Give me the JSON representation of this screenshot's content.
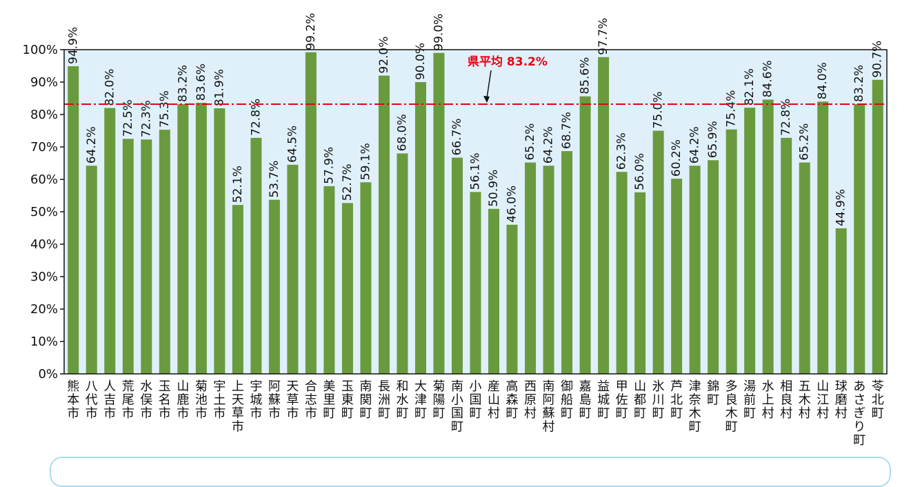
{
  "chart_data": {
    "type": "bar",
    "ylim": [
      0,
      100
    ],
    "yticks": [
      "0%",
      "10%",
      "20%",
      "30%",
      "40%",
      "50%",
      "60%",
      "70%",
      "80%",
      "90%",
      "100%"
    ],
    "grid": false,
    "legend": "none",
    "categories": [
      "熊本市",
      "八代市",
      "人吉市",
      "荒尾市",
      "水俣市",
      "玉名市",
      "山鹿市",
      "菊池市",
      "宇土市",
      "上天草市",
      "宇城市",
      "阿蘇市",
      "天草市",
      "合志市",
      "美里町",
      "玉東町",
      "南関町",
      "長洲町",
      "和水町",
      "大津町",
      "菊陽町",
      "南小国町",
      "小国町",
      "産山村",
      "高森町",
      "西原村",
      "南阿蘇村",
      "御船町",
      "嘉島町",
      "益城町",
      "甲佐町",
      "山都町",
      "氷川町",
      "芦北町",
      "津奈木町",
      "錦町",
      "多良木町",
      "湯前町",
      "水上村",
      "相良村",
      "五木村",
      "山江村",
      "球磨村",
      "あさぎり町",
      "苓北町"
    ],
    "values": [
      94.9,
      64.2,
      82.0,
      72.5,
      72.3,
      75.3,
      83.2,
      83.6,
      81.9,
      52.1,
      72.8,
      53.7,
      64.5,
      99.2,
      57.9,
      52.7,
      59.1,
      92.0,
      68.0,
      90.0,
      99.0,
      66.7,
      56.1,
      50.9,
      46.0,
      65.2,
      64.2,
      68.7,
      85.6,
      97.7,
      62.3,
      56.0,
      75.0,
      60.2,
      64.2,
      65.9,
      75.4,
      82.1,
      84.6,
      72.8,
      65.2,
      84.0,
      44.9,
      83.2,
      90.7
    ],
    "value_labels": [
      "94.9%",
      "64.2%",
      "82.0%",
      "72.5%",
      "72.3%",
      "75.3%",
      "83.2%",
      "83.6%",
      "81.9%",
      "52.1%",
      "72.8%",
      "53.7%",
      "64.5%",
      "99.2%",
      "57.9%",
      "52.7%",
      "59.1%",
      "92.0%",
      "68.0%",
      "90.0%",
      "99.0%",
      "66.7%",
      "56.1%",
      "50.9%",
      "46.0%",
      "65.2%",
      "64.2%",
      "68.7%",
      "85.6%",
      "97.7%",
      "62.3%",
      "56.0%",
      "75.0%",
      "60.2%",
      "64.2%",
      "65.9%",
      "75.4%",
      "82.1%",
      "84.6%",
      "72.8%",
      "65.2%",
      "84.0%",
      "44.9%",
      "83.2%",
      "90.7%"
    ],
    "reference_line": {
      "value": 83.2,
      "label": "県平均 83.2%"
    }
  },
  "colors": {
    "bar": "#6a9a3e",
    "plot_background": "#dff0fa",
    "average_line": "#e60012",
    "axis": "#111111",
    "note_border": "#a9dcf2"
  }
}
